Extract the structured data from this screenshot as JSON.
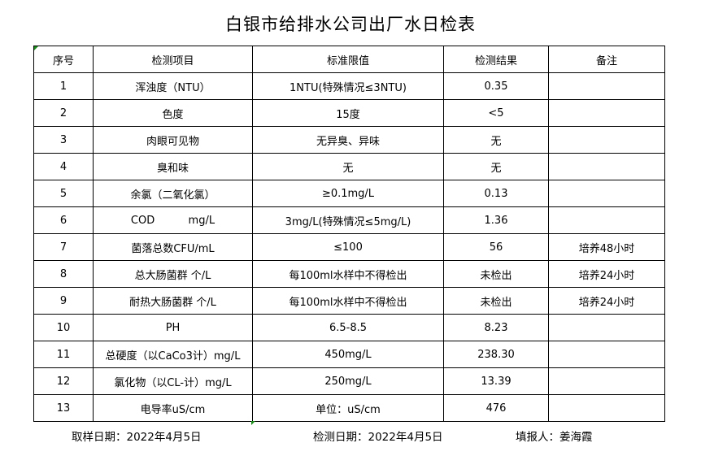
{
  "title": "白银市给排水公司出厂水日检表",
  "table": {
    "headers": [
      "序号",
      "检测项目",
      "标准限值",
      "检测结果",
      "备注"
    ],
    "rows": [
      [
        "1",
        "浑浊度（NTU）",
        "1NTU(特殊情况≤3NTU)",
        "0.35",
        ""
      ],
      [
        "2",
        "色度",
        "15度",
        "<5",
        ""
      ],
      [
        "3",
        "肉眼可见物",
        "无异臭、异味",
        "无",
        ""
      ],
      [
        "4",
        "臭和味",
        "无",
        "无",
        ""
      ],
      [
        "5",
        "余氯（二氧化氯）",
        "≥0.1mg/L",
        "0.13",
        ""
      ],
      [
        "6",
        "COD          mg/L",
        "3mg/L(特殊情况≤5mg/L)",
        "1.36",
        ""
      ],
      [
        "7",
        "菌落总数CFU/mL",
        "≤100",
        "56",
        "培养48小时"
      ],
      [
        "8",
        "总大肠菌群 个/L",
        "每100ml水样中不得检出",
        "未检出",
        "培养24小时"
      ],
      [
        "9",
        "耐热大肠菌群 个/L",
        "每100ml水样中不得检出",
        "未检出",
        "培养24小时"
      ],
      [
        "10",
        "PH",
        "6.5-8.5",
        "8.23",
        ""
      ],
      [
        "11",
        "总硬度（以CaCo3计）mg/L",
        "450mg/L",
        "238.30",
        ""
      ],
      [
        "12",
        "氯化物（以CL-计）mg/L",
        "250mg/L",
        "13.39",
        ""
      ],
      [
        "13",
        "电导率uS/cm",
        "单位：uS/cm",
        "476",
        ""
      ]
    ]
  },
  "footer": {
    "sampling_date": "取样日期：2022年4月5日",
    "test_date": "检测日期：2022年4月5日",
    "reporter": "填报人：姜海霞"
  }
}
